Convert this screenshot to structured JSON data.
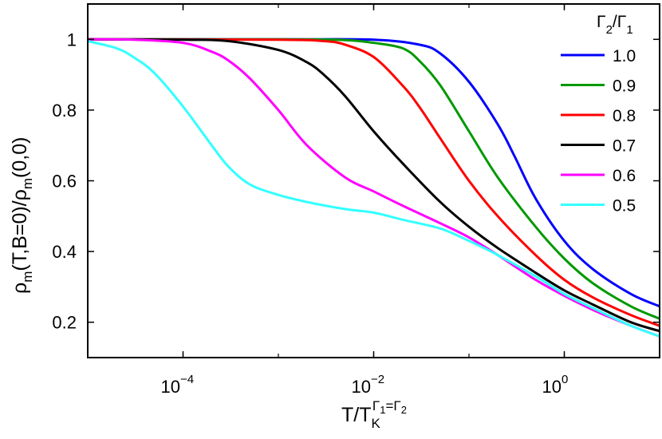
{
  "chart_data": {
    "type": "line",
    "xscale": "log",
    "xlim": [
      1e-05,
      10
    ],
    "ylim": [
      0.1,
      1.1
    ],
    "grid": false,
    "legend_position": "top-right",
    "legend_title": {
      "sym": "Γ",
      "sub1": "2",
      "slash": "/",
      "sub2": "1"
    },
    "xlabel": {
      "base": "T/T",
      "sub": "K",
      "sup": "Γ",
      "supsub": "1",
      "tail": "=Γ",
      "tailsub": "2"
    },
    "ylabel": {
      "p1": "ρ",
      "s1": "m",
      "p2": "(T,B=0)/ρ",
      "s2": "m",
      "p3": "(0,0)"
    },
    "x_ticks": [
      {
        "value": 0.0001,
        "base": "10",
        "exp": "−4"
      },
      {
        "value": 0.01,
        "base": "10",
        "exp": "−2"
      },
      {
        "value": 1,
        "base": "10",
        "exp": "0"
      }
    ],
    "y_ticks": [
      {
        "value": 0.2,
        "label": "0.2"
      },
      {
        "value": 0.4,
        "label": "0.4"
      },
      {
        "value": 0.6,
        "label": "0.6"
      },
      {
        "value": 0.8,
        "label": "0.8"
      },
      {
        "value": 1.0,
        "label": "1"
      }
    ],
    "series": [
      {
        "name": "1.0",
        "color": "#0000ff",
        "x": [
          1e-05,
          0.001,
          0.01,
          0.03,
          0.05,
          0.1,
          0.2,
          0.3,
          0.5,
          1,
          2,
          5,
          10
        ],
        "y": [
          1.0,
          1.0,
          0.999,
          0.985,
          0.96,
          0.88,
          0.76,
          0.67,
          0.55,
          0.43,
          0.35,
          0.28,
          0.245
        ]
      },
      {
        "name": "0.9",
        "color": "#009900",
        "x": [
          1e-05,
          0.001,
          0.005,
          0.01,
          0.02,
          0.03,
          0.05,
          0.1,
          0.2,
          0.5,
          1,
          2,
          5,
          10
        ],
        "y": [
          1.0,
          1.0,
          0.998,
          0.99,
          0.975,
          0.94,
          0.87,
          0.74,
          0.61,
          0.47,
          0.38,
          0.31,
          0.245,
          0.21
        ]
      },
      {
        "name": "0.8",
        "color": "#ff0000",
        "x": [
          1e-05,
          0.001,
          0.003,
          0.005,
          0.01,
          0.02,
          0.03,
          0.05,
          0.1,
          0.2,
          0.5,
          1,
          2,
          5,
          10
        ],
        "y": [
          1.0,
          0.999,
          0.995,
          0.985,
          0.95,
          0.87,
          0.81,
          0.72,
          0.6,
          0.5,
          0.39,
          0.32,
          0.27,
          0.22,
          0.19
        ]
      },
      {
        "name": "0.7",
        "color": "#000000",
        "x": [
          1e-05,
          0.0001,
          0.0003,
          0.001,
          0.002,
          0.003,
          0.005,
          0.01,
          0.02,
          0.05,
          0.1,
          0.2,
          0.5,
          1,
          2,
          5,
          10
        ],
        "y": [
          1.0,
          0.999,
          0.995,
          0.97,
          0.935,
          0.9,
          0.84,
          0.74,
          0.65,
          0.54,
          0.47,
          0.41,
          0.34,
          0.29,
          0.25,
          0.2,
          0.175
        ]
      },
      {
        "name": "0.6",
        "color": "#ff00ff",
        "x": [
          1e-05,
          3e-05,
          0.0001,
          0.0002,
          0.0003,
          0.0005,
          0.001,
          0.002,
          0.005,
          0.01,
          0.02,
          0.05,
          0.1,
          0.2,
          0.5,
          1,
          2,
          5,
          10
        ],
        "y": [
          1.0,
          0.999,
          0.99,
          0.965,
          0.94,
          0.89,
          0.8,
          0.7,
          0.61,
          0.57,
          0.53,
          0.48,
          0.44,
          0.39,
          0.32,
          0.275,
          0.235,
          0.19,
          0.16
        ]
      },
      {
        "name": "0.5",
        "color": "#33ffff",
        "x": [
          1e-05,
          2e-05,
          3e-05,
          5e-05,
          0.0001,
          0.0002,
          0.0003,
          0.0005,
          0.001,
          0.002,
          0.005,
          0.01,
          0.02,
          0.05,
          0.1,
          0.2,
          0.5,
          1,
          2,
          5,
          10
        ],
        "y": [
          0.995,
          0.975,
          0.95,
          0.905,
          0.81,
          0.7,
          0.64,
          0.59,
          0.56,
          0.54,
          0.52,
          0.51,
          0.49,
          0.465,
          0.43,
          0.39,
          0.33,
          0.28,
          0.24,
          0.19,
          0.16
        ]
      }
    ]
  }
}
